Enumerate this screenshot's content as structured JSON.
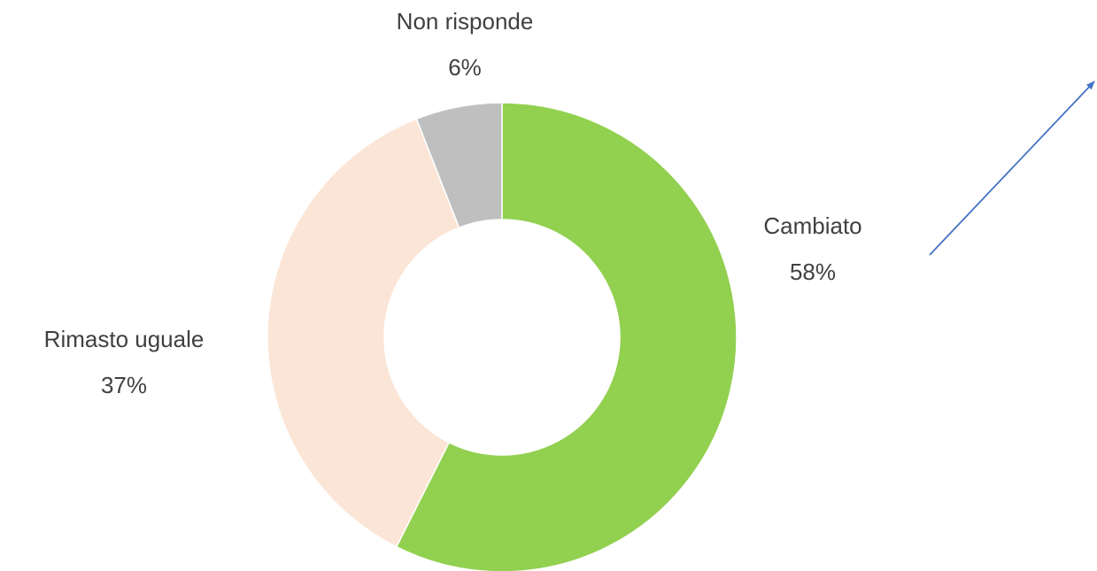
{
  "chart_data": {
    "type": "pie",
    "categories": [
      "Cambiato",
      "Rimasto uguale",
      "Non risponde"
    ],
    "values": [
      58,
      37,
      6
    ],
    "value_labels": [
      "58%",
      "37%",
      "6%"
    ],
    "colors": [
      "#92d050",
      "#fbe5d6",
      "#bfbfbf"
    ],
    "donut": true
  }
}
